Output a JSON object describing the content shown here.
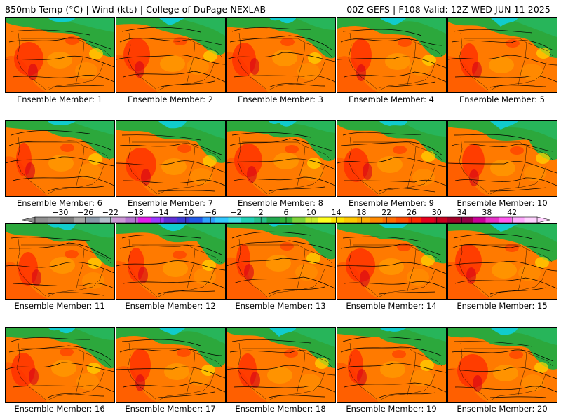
{
  "header": {
    "left": "850mb Temp (°C) | Wind (kts) | College of DuPage NEXLAB",
    "right": "00Z GEFS | F108 Valid: 12Z WED JUN 11 2025"
  },
  "member_prefix": "Ensemble Member: ",
  "members": [
    1,
    2,
    3,
    4,
    5,
    6,
    7,
    8,
    9,
    10,
    11,
    12,
    13,
    14,
    15,
    16,
    17,
    18,
    19,
    20
  ],
  "colorbar": {
    "tick_labels": [
      "−30",
      "−26",
      "−22",
      "−18",
      "−14",
      "−10",
      "−6",
      "−2",
      "2",
      "6",
      "10",
      "14",
      "18",
      "22",
      "26",
      "30",
      "34",
      "38",
      "42"
    ],
    "colors": [
      "#8f8f8f",
      "#9a9a9a",
      "#7e7e7e",
      "#a7a7a7",
      "#8a9aaa",
      "#b4bfcc",
      "#cc9ad6",
      "#b476cf",
      "#e31de8",
      "#9a3aff",
      "#5f2fd6",
      "#3a3ad6",
      "#1f5ae6",
      "#2fa0ff",
      "#32c8ff",
      "#44e0e6",
      "#1fd0b4",
      "#24c08a",
      "#1fa84e",
      "#30b43a",
      "#7dd23a",
      "#c8eb2a",
      "#ffff1e",
      "#ffe400",
      "#ffc800",
      "#ffab00",
      "#ff8a00",
      "#ff6c00",
      "#ff4e00",
      "#ff2800",
      "#e6001e",
      "#c8001e",
      "#a00028",
      "#960046",
      "#c80096",
      "#e632c8",
      "#ff5af0",
      "#ffaaff",
      "#ffd2ff"
    ],
    "range": [
      -34,
      46
    ]
  },
  "colors": {
    "warm": "#ff7a00",
    "hot": "#ff2a00",
    "cool": "#2ca83c",
    "cold": "#11cccc"
  }
}
